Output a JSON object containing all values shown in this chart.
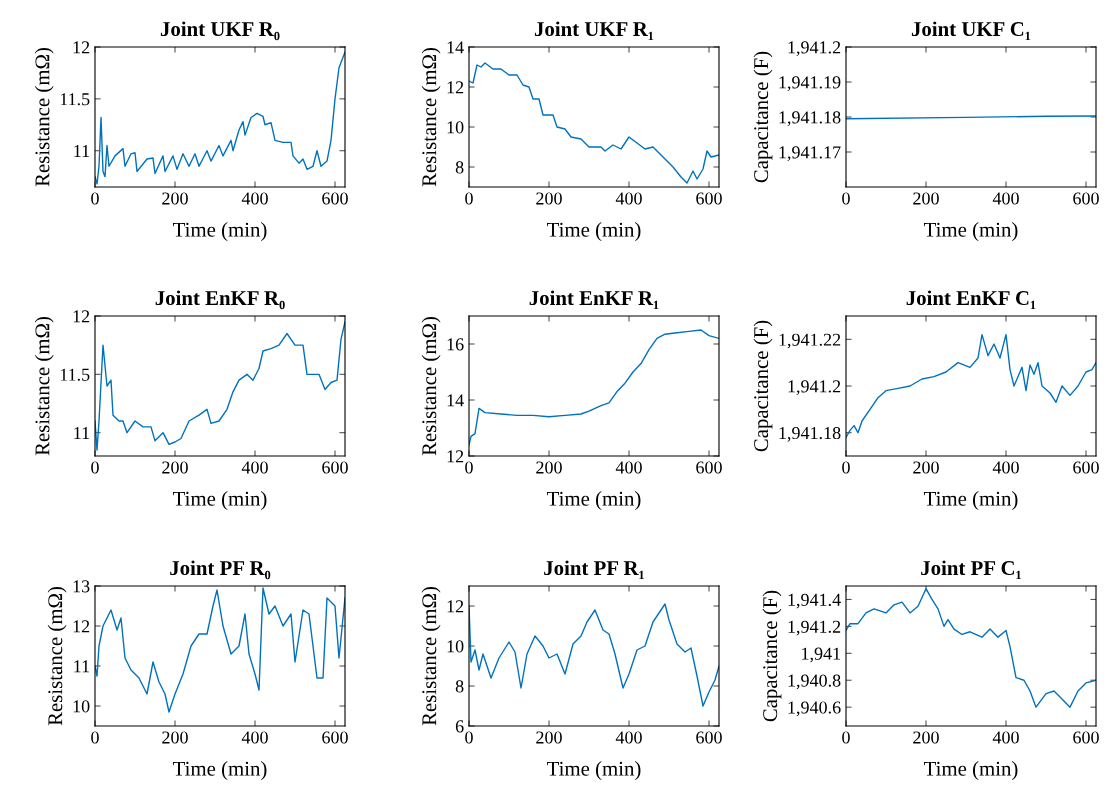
{
  "chart_data": [
    {
      "type": "line",
      "title": "Joint UKF R₀",
      "xlabel": "Time (min)",
      "ylabel": "Resistance (mΩ)",
      "xlim": [
        0,
        625
      ],
      "xticks": [
        0,
        200,
        400,
        600
      ],
      "ylim": [
        10.65,
        12
      ],
      "yticks": [
        11,
        11.5,
        12
      ],
      "grid": false,
      "series": [
        {
          "color": "#0072bd",
          "x": [
            0,
            5,
            10,
            15,
            20,
            25,
            30,
            35,
            50,
            70,
            75,
            90,
            100,
            105,
            130,
            145,
            150,
            170,
            175,
            195,
            205,
            220,
            235,
            250,
            260,
            280,
            290,
            310,
            320,
            340,
            345,
            360,
            370,
            375,
            390,
            405,
            420,
            425,
            440,
            450,
            470,
            490,
            495,
            510,
            520,
            530,
            545,
            555,
            565,
            580,
            590,
            600,
            610,
            625
          ],
          "values": [
            10.75,
            10.68,
            10.85,
            11.32,
            10.8,
            10.75,
            11.05,
            10.85,
            10.95,
            11.02,
            10.85,
            10.97,
            10.98,
            10.8,
            10.92,
            10.93,
            10.78,
            10.95,
            10.8,
            10.95,
            10.82,
            10.97,
            10.85,
            10.97,
            10.85,
            11.0,
            10.9,
            11.05,
            10.95,
            11.1,
            11.0,
            11.2,
            11.28,
            11.15,
            11.32,
            11.36,
            11.33,
            11.25,
            11.27,
            11.1,
            11.08,
            11.08,
            10.95,
            10.88,
            10.92,
            10.82,
            10.85,
            11.0,
            10.85,
            10.9,
            11.1,
            11.5,
            11.8,
            11.95
          ]
        }
      ]
    },
    {
      "type": "line",
      "title": "Joint UKF R₁",
      "xlabel": "Time (min)",
      "ylabel": "Resistance (mΩ)",
      "xlim": [
        0,
        625
      ],
      "xticks": [
        0,
        200,
        400,
        600
      ],
      "ylim": [
        7,
        14
      ],
      "yticks": [
        8,
        10,
        12,
        14
      ],
      "grid": false,
      "series": [
        {
          "color": "#0072bd",
          "x": [
            0,
            10,
            20,
            30,
            40,
            60,
            80,
            100,
            120,
            135,
            150,
            160,
            175,
            185,
            210,
            220,
            240,
            255,
            280,
            300,
            330,
            340,
            360,
            380,
            400,
            420,
            440,
            460,
            475,
            490,
            510,
            530,
            545,
            560,
            570,
            585,
            595,
            605,
            625
          ],
          "values": [
            12.3,
            12.2,
            13.1,
            13.0,
            13.2,
            12.9,
            12.9,
            12.6,
            12.6,
            12.1,
            12.0,
            11.4,
            11.4,
            10.6,
            10.6,
            10.0,
            9.9,
            9.5,
            9.4,
            9.0,
            9.0,
            8.8,
            9.1,
            8.9,
            9.5,
            9.2,
            8.9,
            9.0,
            8.7,
            8.4,
            8.0,
            7.5,
            7.2,
            7.8,
            7.4,
            7.9,
            8.8,
            8.5,
            8.6
          ]
        }
      ]
    },
    {
      "type": "line",
      "title": "Joint UKF C₁",
      "xlabel": "Time (min)",
      "ylabel": "Capacitance (F)",
      "xlim": [
        0,
        625
      ],
      "xticks": [
        0,
        200,
        400,
        600
      ],
      "ylim": [
        1941.16,
        1941.2
      ],
      "yticks": [
        {
          "value": 1941.17,
          "label": "1,941.17"
        },
        {
          "value": 1941.18,
          "label": "1,941.18"
        },
        {
          "value": 1941.19,
          "label": "1,941.19"
        },
        {
          "value": 1941.2,
          "label": "1,941.2"
        }
      ],
      "grid": false,
      "series": [
        {
          "color": "#0072bd",
          "x": [
            0,
            300,
            500,
            625
          ],
          "values": [
            1941.1795,
            1941.1799,
            1941.1802,
            1941.1803
          ]
        }
      ]
    },
    {
      "type": "line",
      "title": "Joint EnKF R₀",
      "xlabel": "Time (min)",
      "ylabel": "Resistance (mΩ)",
      "xlim": [
        0,
        625
      ],
      "xticks": [
        0,
        200,
        400,
        600
      ],
      "ylim": [
        10.8,
        12
      ],
      "yticks": [
        11,
        11.5,
        12
      ],
      "grid": false,
      "series": [
        {
          "color": "#0072bd",
          "x": [
            0,
            5,
            10,
            20,
            30,
            40,
            45,
            60,
            70,
            80,
            100,
            120,
            140,
            150,
            170,
            185,
            200,
            215,
            235,
            260,
            280,
            290,
            310,
            330,
            345,
            360,
            380,
            395,
            410,
            420,
            440,
            460,
            480,
            500,
            520,
            530,
            560,
            575,
            590,
            605,
            615,
            625
          ],
          "values": [
            11.1,
            10.85,
            11.1,
            11.75,
            11.4,
            11.45,
            11.15,
            11.1,
            11.1,
            11.0,
            11.1,
            11.05,
            11.05,
            10.93,
            11.0,
            10.9,
            10.92,
            10.95,
            11.1,
            11.15,
            11.2,
            11.08,
            11.1,
            11.2,
            11.35,
            11.45,
            11.5,
            11.45,
            11.55,
            11.7,
            11.72,
            11.75,
            11.85,
            11.75,
            11.75,
            11.5,
            11.5,
            11.37,
            11.43,
            11.45,
            11.8,
            11.95
          ]
        }
      ]
    },
    {
      "type": "line",
      "title": "Joint EnKF R₁",
      "xlabel": "Time (min)",
      "ylabel": "Resistance (mΩ)",
      "xlim": [
        0,
        625
      ],
      "xticks": [
        0,
        200,
        400,
        600
      ],
      "ylim": [
        12,
        17
      ],
      "yticks": [
        12,
        14,
        16
      ],
      "grid": false,
      "series": [
        {
          "color": "#0072bd",
          "x": [
            0,
            5,
            15,
            25,
            40,
            80,
            120,
            160,
            200,
            240,
            280,
            300,
            330,
            350,
            370,
            390,
            410,
            430,
            450,
            470,
            490,
            520,
            550,
            580,
            600,
            625
          ],
          "values": [
            12.4,
            12.7,
            12.8,
            13.7,
            13.55,
            13.5,
            13.45,
            13.45,
            13.4,
            13.45,
            13.5,
            13.6,
            13.8,
            13.9,
            14.3,
            14.6,
            15.0,
            15.3,
            15.8,
            16.2,
            16.35,
            16.4,
            16.45,
            16.5,
            16.3,
            16.2
          ]
        }
      ]
    },
    {
      "type": "line",
      "title": "Joint EnKF C₁",
      "xlabel": "Time (min)",
      "ylabel": "Capacitance (F)",
      "xlim": [
        0,
        625
      ],
      "xticks": [
        0,
        200,
        400,
        600
      ],
      "ylim": [
        1941.17,
        1941.23
      ],
      "yticks": [
        {
          "value": 1941.18,
          "label": "1,941.18"
        },
        {
          "value": 1941.2,
          "label": "1,941.2"
        },
        {
          "value": 1941.22,
          "label": "1,941.22"
        }
      ],
      "grid": false,
      "series": [
        {
          "color": "#0072bd",
          "x": [
            0,
            10,
            20,
            30,
            40,
            60,
            80,
            100,
            130,
            160,
            190,
            220,
            250,
            280,
            310,
            330,
            340,
            355,
            370,
            385,
            400,
            410,
            420,
            440,
            450,
            460,
            470,
            480,
            490,
            510,
            525,
            540,
            560,
            580,
            600,
            615,
            625
          ],
          "values": [
            1941.178,
            1941.181,
            1941.183,
            1941.18,
            1941.185,
            1941.19,
            1941.195,
            1941.198,
            1941.199,
            1941.2,
            1941.203,
            1941.204,
            1941.206,
            1941.21,
            1941.208,
            1941.212,
            1941.222,
            1941.213,
            1941.218,
            1941.212,
            1941.222,
            1941.207,
            1941.2,
            1941.208,
            1941.198,
            1941.209,
            1941.205,
            1941.21,
            1941.2,
            1941.197,
            1941.193,
            1941.2,
            1941.196,
            1941.2,
            1941.206,
            1941.207,
            1941.21
          ]
        }
      ]
    },
    {
      "type": "line",
      "title": "Joint PF R₀",
      "xlabel": "Time (min)",
      "ylabel": "Resistance (mΩ)",
      "xlim": [
        0,
        625
      ],
      "xticks": [
        0,
        200,
        400,
        600
      ],
      "ylim": [
        9.5,
        13
      ],
      "yticks": [
        10,
        11,
        12,
        13
      ],
      "grid": false,
      "series": [
        {
          "color": "#0072bd",
          "x": [
            0,
            5,
            10,
            20,
            30,
            40,
            55,
            65,
            75,
            90,
            110,
            130,
            145,
            160,
            175,
            185,
            200,
            220,
            240,
            260,
            280,
            295,
            305,
            320,
            340,
            360,
            375,
            385,
            400,
            410,
            420,
            435,
            450,
            470,
            490,
            500,
            520,
            535,
            555,
            570,
            580,
            600,
            610,
            620,
            625
          ],
          "values": [
            11.0,
            10.75,
            11.5,
            12.0,
            12.2,
            12.4,
            11.9,
            12.2,
            11.2,
            10.9,
            10.7,
            10.3,
            11.1,
            10.6,
            10.3,
            9.85,
            10.3,
            10.8,
            11.5,
            11.8,
            11.8,
            12.5,
            12.9,
            12.0,
            11.3,
            11.5,
            12.3,
            11.3,
            10.8,
            10.4,
            12.95,
            12.3,
            12.5,
            12.0,
            12.3,
            11.1,
            12.4,
            12.3,
            10.7,
            10.7,
            12.7,
            12.5,
            11.2,
            12.2,
            12.7
          ]
        }
      ]
    },
    {
      "type": "line",
      "title": "Joint PF R₁",
      "xlabel": "Time (min)",
      "ylabel": "Resistance (mΩ)",
      "xlim": [
        0,
        625
      ],
      "xticks": [
        0,
        200,
        400,
        600
      ],
      "ylim": [
        6,
        13
      ],
      "yticks": [
        6,
        8,
        10,
        12
      ],
      "grid": false,
      "series": [
        {
          "color": "#0072bd",
          "x": [
            0,
            5,
            15,
            25,
            35,
            55,
            75,
            100,
            115,
            130,
            145,
            165,
            185,
            200,
            220,
            240,
            260,
            280,
            295,
            315,
            335,
            350,
            365,
            385,
            400,
            420,
            440,
            460,
            480,
            490,
            500,
            520,
            540,
            555,
            570,
            585,
            600,
            615,
            625
          ],
          "values": [
            12.0,
            9.2,
            9.8,
            8.8,
            9.6,
            8.4,
            9.4,
            10.2,
            9.7,
            7.9,
            9.6,
            10.5,
            10.0,
            9.4,
            9.6,
            8.6,
            10.1,
            10.5,
            11.2,
            11.8,
            10.8,
            10.6,
            9.6,
            7.9,
            8.6,
            9.8,
            10.0,
            11.2,
            11.8,
            12.1,
            11.3,
            10.1,
            9.7,
            9.9,
            8.5,
            7.0,
            7.7,
            8.3,
            9.0
          ]
        }
      ]
    },
    {
      "type": "line",
      "title": "Joint PF C₁",
      "xlabel": "Time (min)",
      "ylabel": "Capacitance (F)",
      "xlim": [
        0,
        625
      ],
      "xticks": [
        0,
        200,
        400,
        600
      ],
      "ylim": [
        1940.46,
        1941.5
      ],
      "yticks": [
        {
          "value": 1940.6,
          "label": "1,940.6"
        },
        {
          "value": 1940.8,
          "label": "1,940.8"
        },
        {
          "value": 1941,
          "label": "1,941"
        },
        {
          "value": 1941.2,
          "label": "1,941.2"
        },
        {
          "value": 1941.4,
          "label": "1,941.4"
        }
      ],
      "grid": false,
      "series": [
        {
          "color": "#0072bd",
          "x": [
            0,
            10,
            30,
            50,
            70,
            100,
            120,
            140,
            160,
            180,
            200,
            215,
            230,
            245,
            255,
            270,
            290,
            310,
            340,
            360,
            380,
            400,
            410,
            425,
            445,
            460,
            475,
            500,
            520,
            540,
            560,
            580,
            600,
            625
          ],
          "values": [
            1941.17,
            1941.22,
            1941.22,
            1941.3,
            1941.33,
            1941.3,
            1941.36,
            1941.38,
            1941.3,
            1941.35,
            1941.48,
            1941.4,
            1941.33,
            1941.2,
            1941.25,
            1941.18,
            1941.14,
            1941.16,
            1941.12,
            1941.18,
            1941.12,
            1941.17,
            1941.05,
            1940.82,
            1940.8,
            1940.72,
            1940.6,
            1940.7,
            1940.72,
            1940.66,
            1940.6,
            1940.72,
            1940.78,
            1940.8
          ]
        }
      ]
    }
  ]
}
